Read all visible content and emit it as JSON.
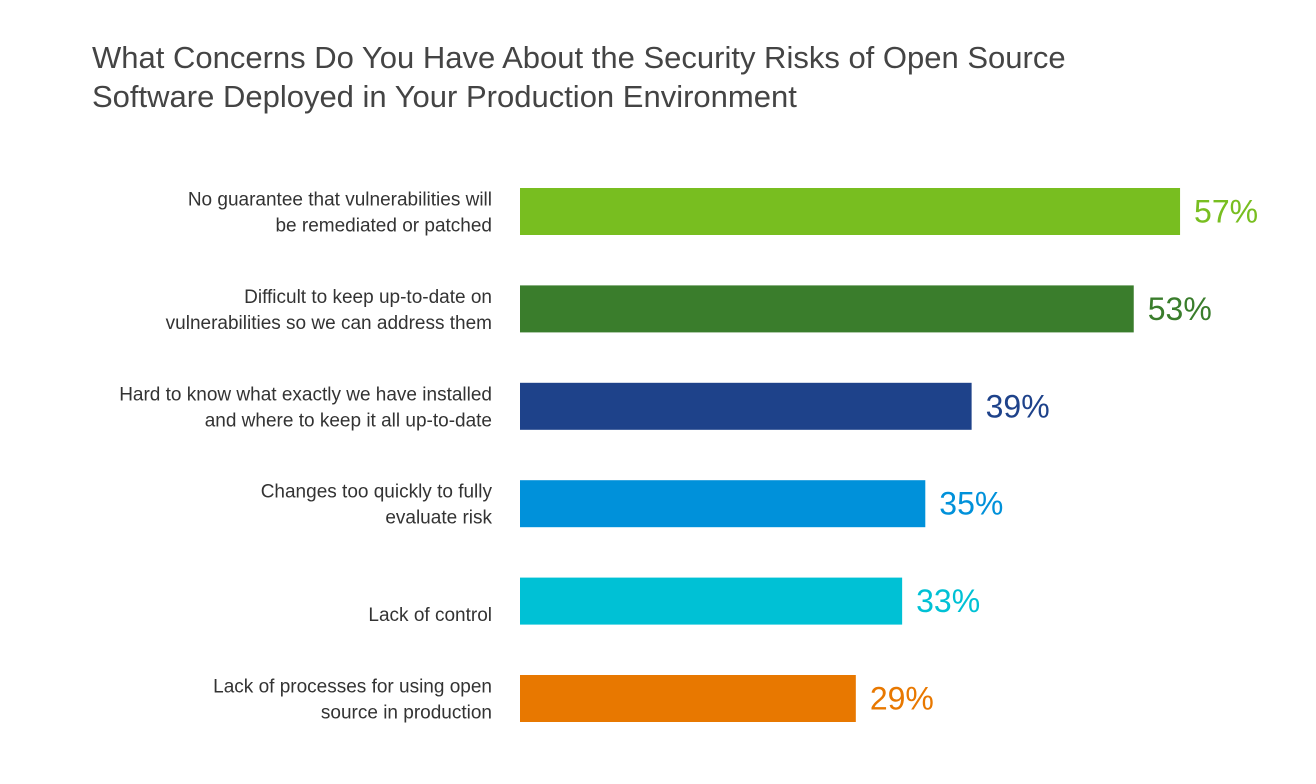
{
  "chart_data": {
    "type": "bar",
    "orientation": "horizontal",
    "title": "What Concerns Do You Have About the Security Risks of Open Source Software Deployed in Your Production Environment",
    "title_lines": [
      "What Concerns Do You Have About the Security Risks of Open Source",
      "Software Deployed in Your Production Environment"
    ],
    "categories": [
      [
        "No guarantee that vulnerabilities will",
        "be remediated or patched"
      ],
      [
        "Difficult to keep up-to-date on",
        "vulnerabilities so we can address them"
      ],
      [
        "Hard to know what exactly we have installed",
        "and where to keep it all up-to-date"
      ],
      [
        "Changes too quickly to fully",
        "evaluate risk"
      ],
      [
        "Lack of control"
      ],
      [
        "Lack of processes for using open",
        "source in production"
      ]
    ],
    "values": [
      57,
      53,
      39,
      35,
      33,
      29
    ],
    "value_labels": [
      "57%",
      "53%",
      "39%",
      "35%",
      "33%",
      "29%"
    ],
    "colors": [
      "#78be20",
      "#3a7d2c",
      "#1e428a",
      "#0091da",
      "#00c1d5",
      "#e87800"
    ],
    "unit": "%",
    "xlabel": "",
    "ylabel": "",
    "xlim": [
      0,
      100
    ],
    "grid": false,
    "legend": "none"
  }
}
